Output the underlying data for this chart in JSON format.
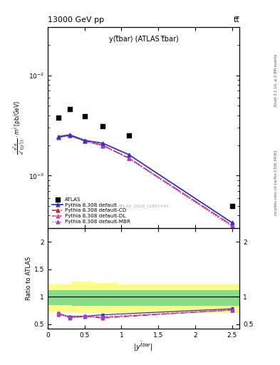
{
  "title_left": "13000 GeV pp",
  "title_right": "tt̅",
  "plot_label": "y(t̅bar) (ATLAS t̅bar)",
  "watermark": "ATLAS_2020_I1801434",
  "right_label_top": "Rivet 3.1.10, ≥ 2.8M events",
  "right_label_bottom": "mcplots.cern.ch [arXiv:1306.3436]",
  "ylabel_ratio": "Ratio to ATLAS",
  "xlabel": "|y^{t̅bar}|",
  "atlas_x": [
    0.15,
    0.3,
    0.5,
    0.75,
    1.1,
    2.5
  ],
  "atlas_y": [
    0.0038,
    0.0046,
    0.0039,
    0.0031,
    0.0025,
    0.0005
  ],
  "pythia_x": [
    0.15,
    0.3,
    0.5,
    0.75,
    1.1,
    2.5
  ],
  "pythia_default_y": [
    0.00245,
    0.00255,
    0.00225,
    0.0021,
    0.00162,
    0.00034
  ],
  "pythia_CD_y": [
    0.00242,
    0.00252,
    0.00222,
    0.002,
    0.0015,
    0.00032
  ],
  "pythia_DL_y": [
    0.00242,
    0.00252,
    0.00222,
    0.002,
    0.0015,
    0.00032
  ],
  "pythia_MBR_y": [
    0.00238,
    0.0025,
    0.0022,
    0.00198,
    0.00148,
    0.00031
  ],
  "ratio_x": [
    0.15,
    0.3,
    0.5,
    0.75,
    2.5
  ],
  "ratio_default": [
    0.68,
    0.64,
    0.645,
    0.67,
    0.78
  ],
  "ratio_CD": [
    0.7,
    0.61,
    0.64,
    0.61,
    0.76
  ],
  "ratio_DL": [
    0.7,
    0.62,
    0.645,
    0.63,
    0.76
  ],
  "ratio_MBR": [
    0.68,
    0.62,
    0.64,
    0.63,
    0.75
  ],
  "yerr_default": [
    0.018,
    0.016,
    0.016,
    0.018,
    0.025
  ],
  "yerr_CD": [
    0.018,
    0.016,
    0.016,
    0.018,
    0.025
  ],
  "yerr_DL": [
    0.018,
    0.016,
    0.016,
    0.018,
    0.025
  ],
  "yerr_MBR": [
    0.018,
    0.016,
    0.016,
    0.018,
    0.025
  ],
  "band_edges": [
    0.0,
    0.32,
    0.62,
    0.95,
    1.32,
    2.6
  ],
  "green_lo": [
    0.85,
    0.83,
    0.83,
    0.83,
    0.83,
    0.83
  ],
  "green_hi": [
    1.12,
    1.12,
    1.12,
    1.12,
    1.12,
    1.12
  ],
  "yellow_lo": [
    0.72,
    0.7,
    0.7,
    0.7,
    0.7,
    0.7
  ],
  "yellow_hi": [
    1.22,
    1.27,
    1.25,
    1.22,
    1.22,
    1.22
  ],
  "color_default": "#3333bb",
  "color_CD": "#cc2222",
  "color_DL": "#cc44aa",
  "color_MBR": "#9944cc",
  "ylim_main": [
    0.0003,
    0.03
  ],
  "ylim_ratio": [
    0.42,
    2.25
  ],
  "xlim": [
    0.0,
    2.6
  ],
  "fig_width": 3.93,
  "fig_height": 5.12,
  "dpi": 100
}
